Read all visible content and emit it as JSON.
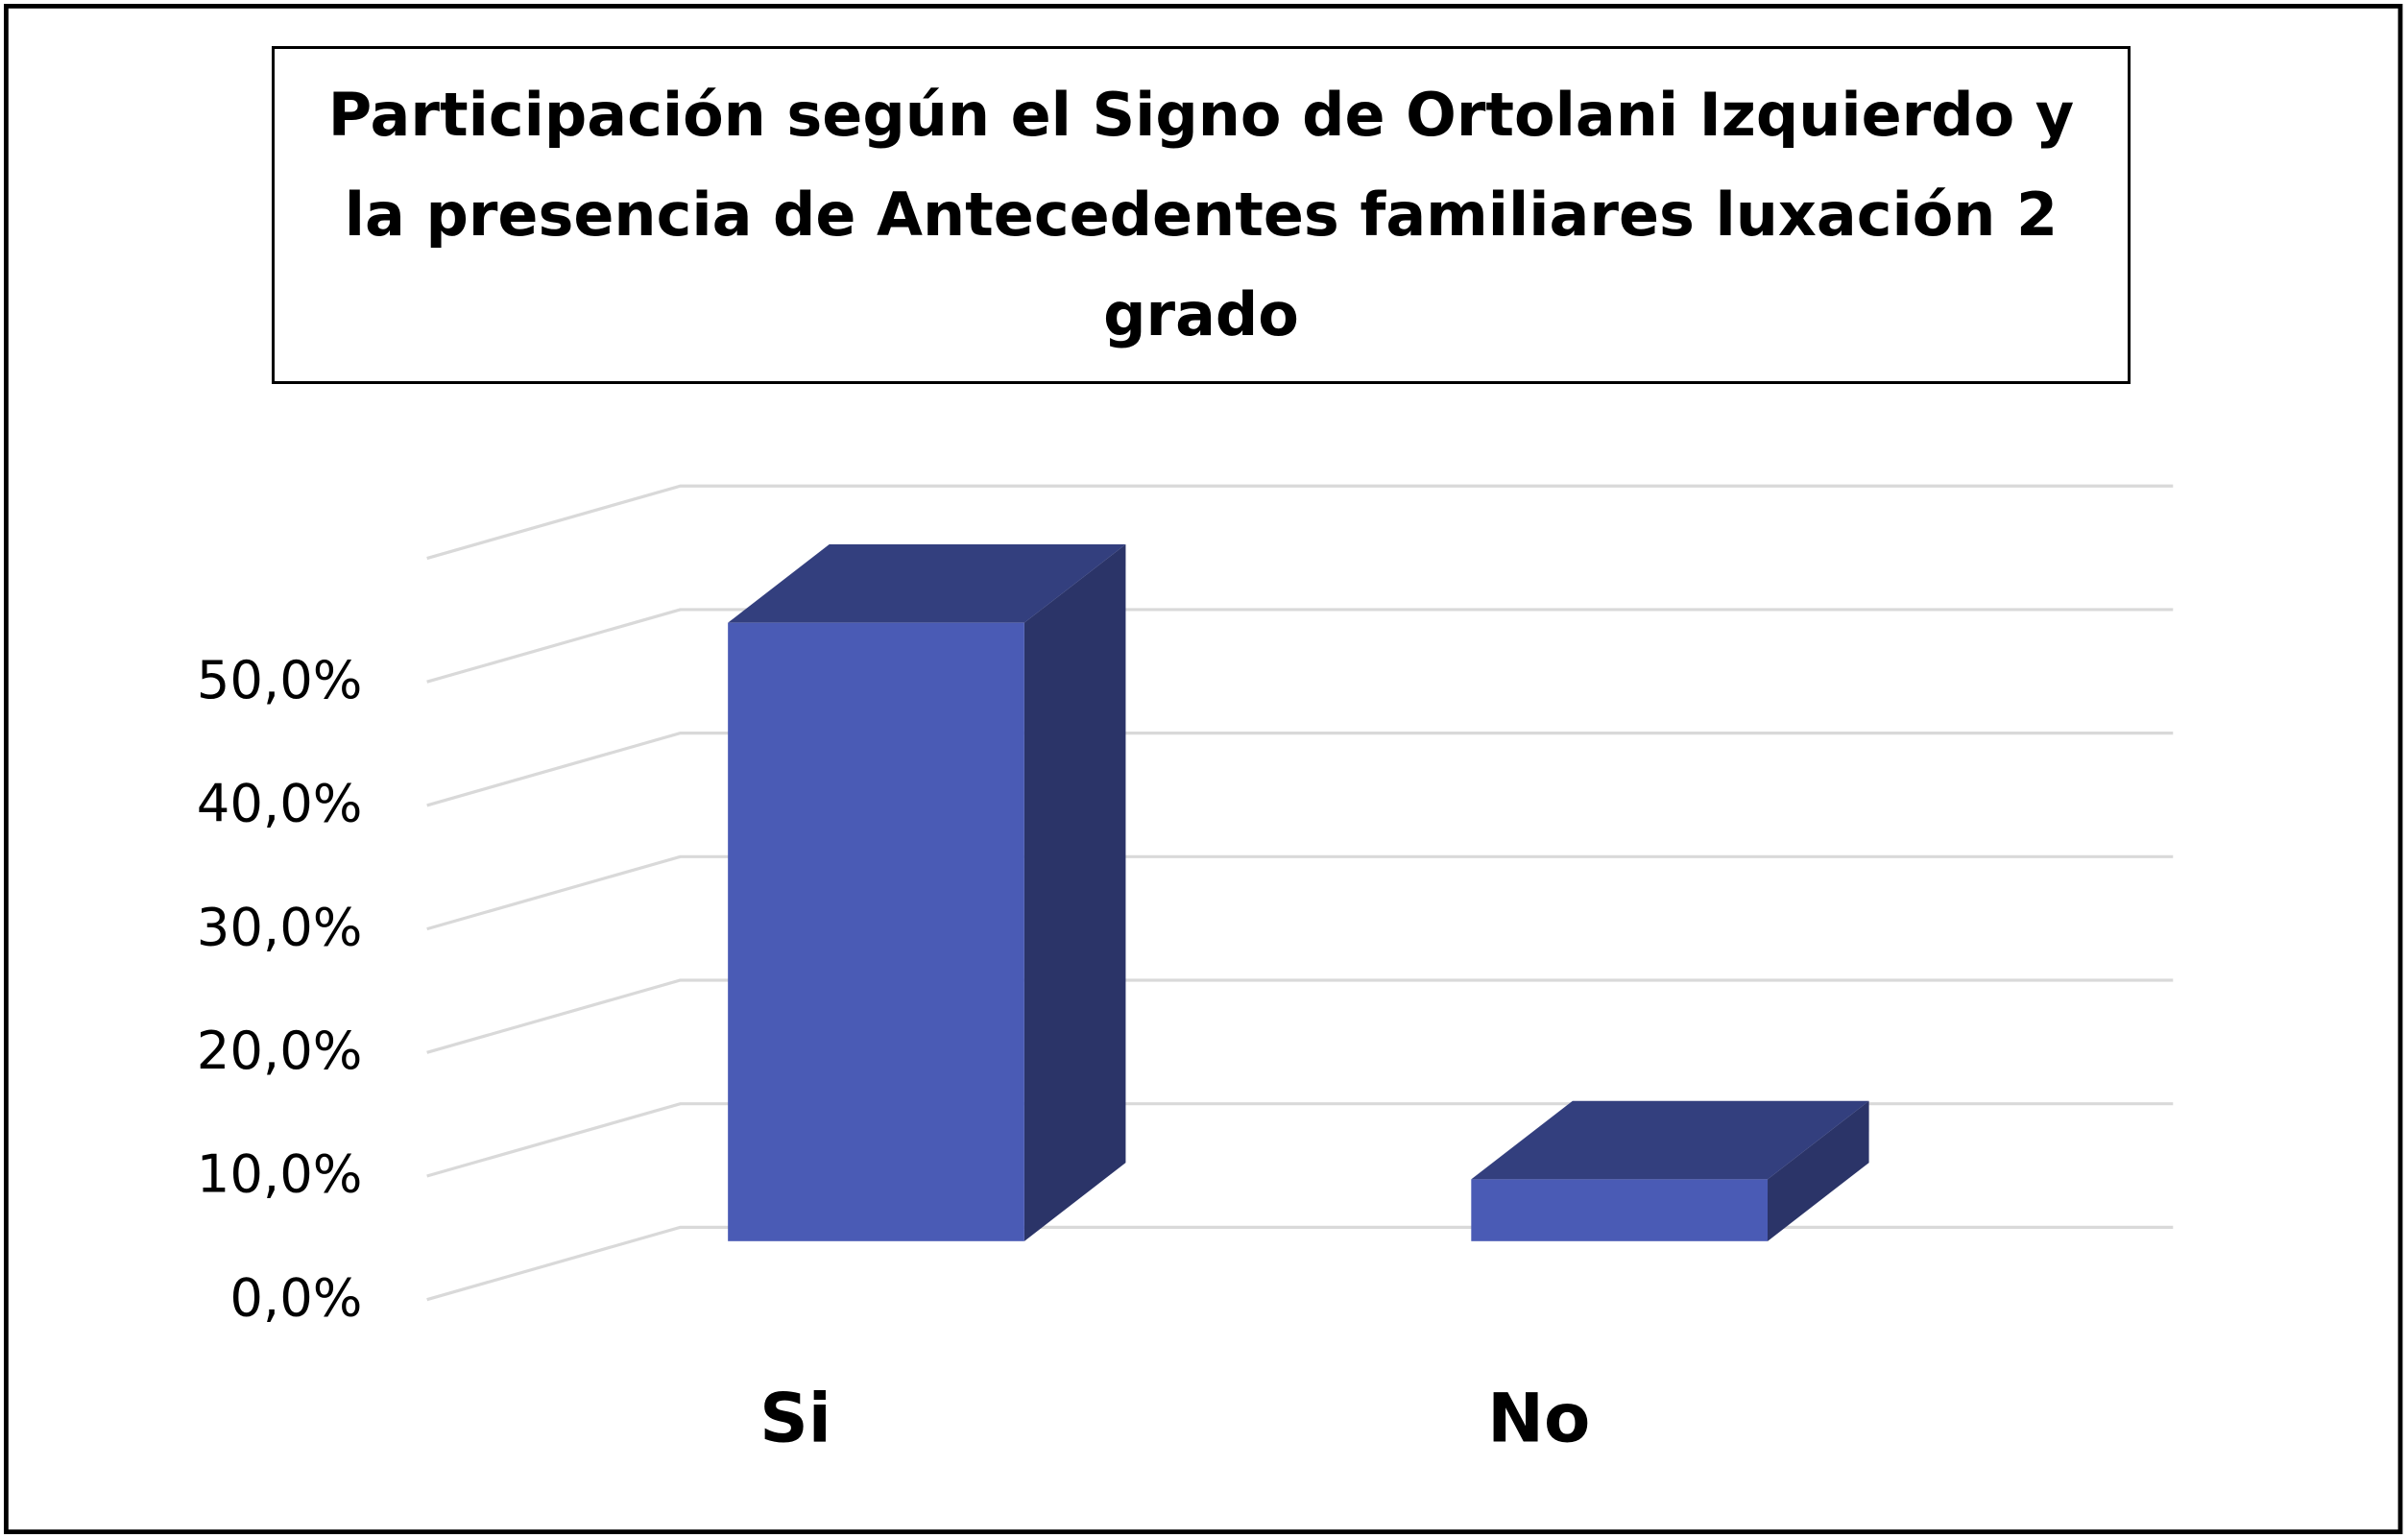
{
  "chart_data": {
    "type": "bar3d",
    "title": "Participación según el Signo de Ortolani Izquierdo y la presencia de Antecedentes familiares luxación 2 grado",
    "categories": [
      "Si",
      "No"
    ],
    "values": [
      50,
      5
    ],
    "color": "#4a5bb5",
    "ylim": [
      0,
      60
    ],
    "yticks": [
      {
        "value": 0,
        "label": "0,0%"
      },
      {
        "value": 10,
        "label": "10,0%"
      },
      {
        "value": 20,
        "label": "20,0%"
      },
      {
        "value": 30,
        "label": "30,0%"
      },
      {
        "value": 40,
        "label": "40,0%"
      },
      {
        "value": 50,
        "label": "50,0%"
      }
    ],
    "grid": true
  }
}
